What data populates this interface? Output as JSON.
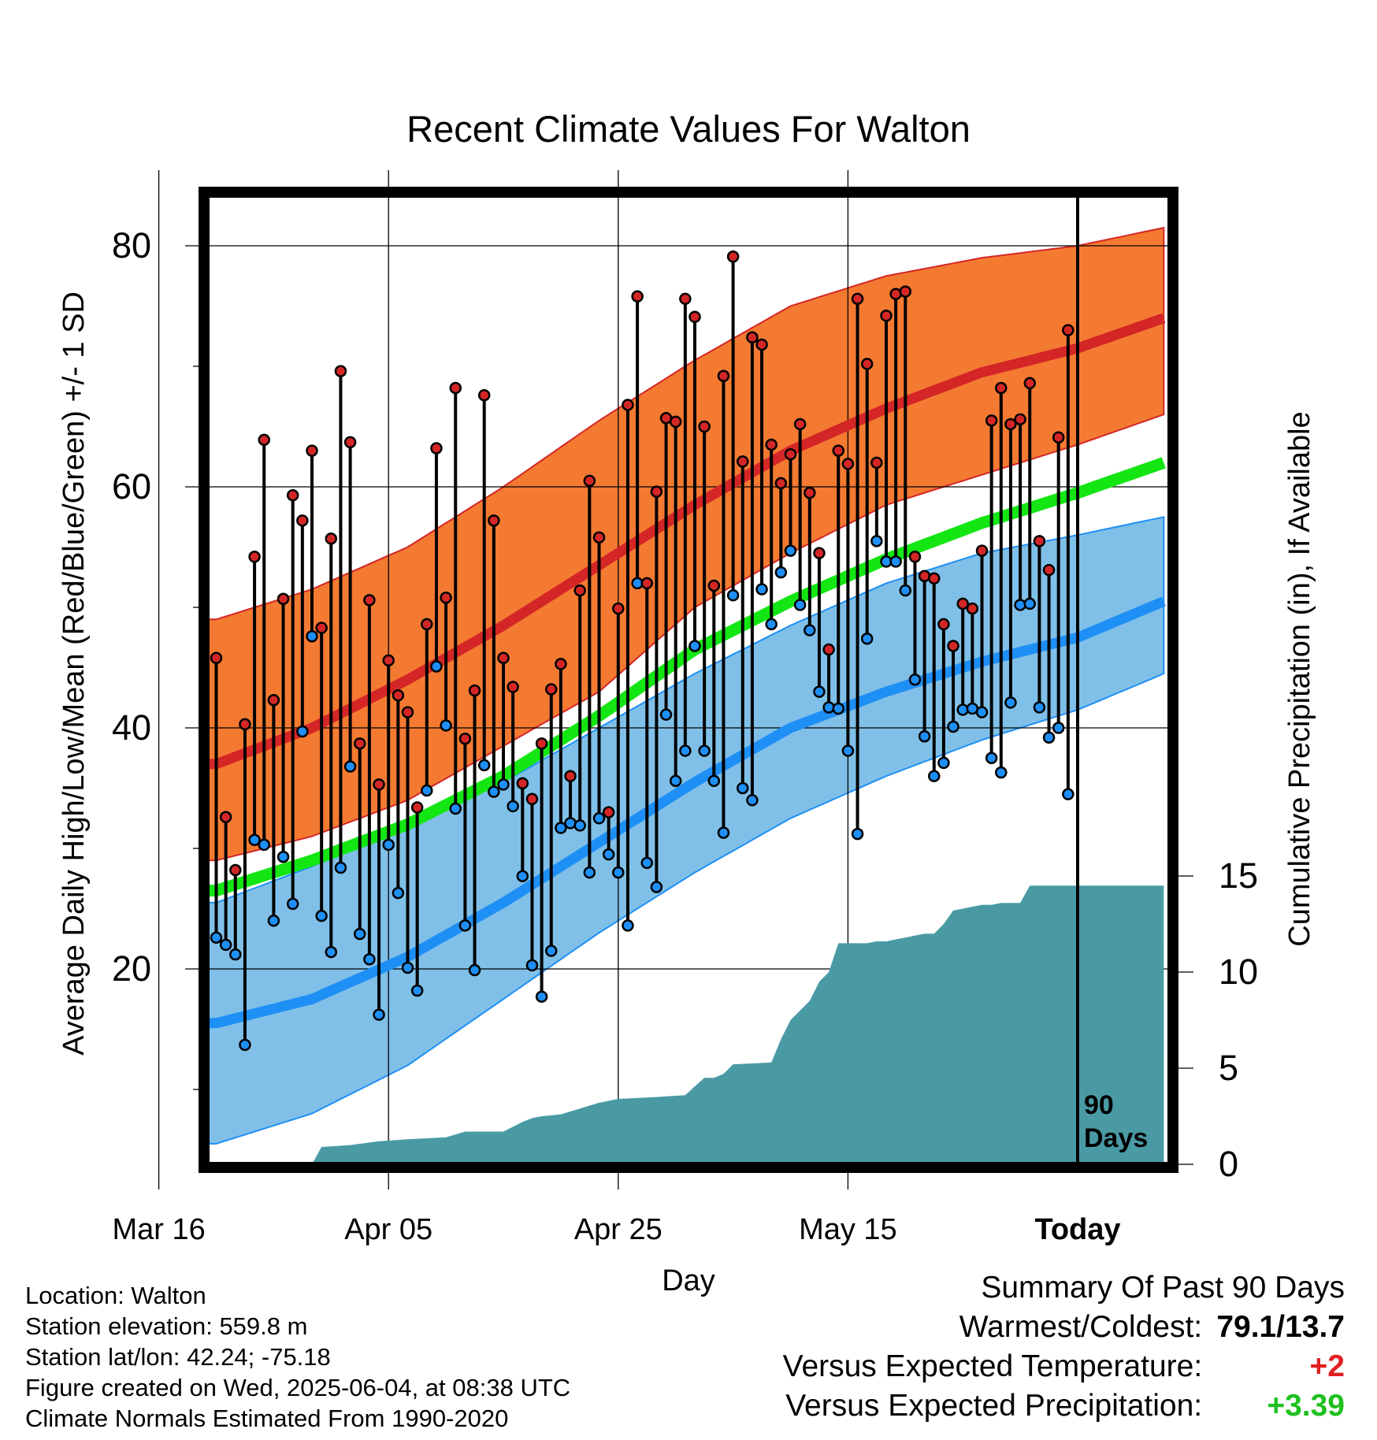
{
  "chart_data": {
    "type": "line",
    "title": "Recent Climate Values For Walton",
    "xlabel": "Day",
    "ylabel": "Average Daily High/Low/Mean (Red/Blue/Green) +/- 1 SD",
    "y2label": "Cumulative Precipitation (in), If Available",
    "x_tick_labels": [
      "Mar 16",
      "Apr 05",
      "Apr 25",
      "May 15",
      "Today"
    ],
    "today_marker_label": "90\nDays",
    "y_ticks": [
      20,
      40,
      60,
      80
    ],
    "y2_ticks": [
      0,
      5,
      10,
      15
    ],
    "ylim": [
      5,
      86
    ],
    "y2lim": [
      0,
      24.7
    ],
    "xlim": [
      -100,
      0
    ],
    "colors": {
      "high_band": "#f47a32",
      "high_normal": "#d42626",
      "low_band": "#80c0e8",
      "low_normal": "#1e8ff5",
      "mean_normal": "#14e614",
      "precip": "#4a9aa4"
    },
    "normals": {
      "days_before_today": [
        -90,
        -80,
        -70,
        -60,
        -50,
        -40,
        -30,
        -20,
        -10,
        0,
        9
      ],
      "high_mean": [
        37.0,
        40.0,
        44.0,
        48.5,
        53.5,
        58.5,
        63.0,
        66.5,
        69.5,
        71.5,
        74.0
      ],
      "high_upper": [
        49.0,
        51.5,
        55.0,
        60.0,
        65.5,
        70.5,
        75.0,
        77.5,
        79.0,
        80.0,
        81.5
      ],
      "high_lower": [
        29.0,
        31.0,
        34.0,
        38.5,
        43.0,
        50.0,
        54.5,
        58.5,
        61.0,
        63.5,
        66.0
      ],
      "mean_normal": [
        26.5,
        29.0,
        32.0,
        36.0,
        41.0,
        46.5,
        50.5,
        54.0,
        57.0,
        59.5,
        62.0
      ],
      "low_mean": [
        15.5,
        17.5,
        21.0,
        25.5,
        30.5,
        35.5,
        40.0,
        43.0,
        45.5,
        47.5,
        50.5
      ],
      "low_upper": [
        25.5,
        28.5,
        32.0,
        35.5,
        40.0,
        44.5,
        48.5,
        52.0,
        54.5,
        56.0,
        57.5
      ],
      "low_lower": [
        5.5,
        8.0,
        12.0,
        17.5,
        23.0,
        28.0,
        32.5,
        36.0,
        39.0,
        41.5,
        44.5
      ]
    },
    "daily_high": [
      45.8,
      32.6,
      28.2,
      40.3,
      54.2,
      63.9,
      42.3,
      50.7,
      59.3,
      57.2,
      63.0,
      48.3,
      55.7,
      69.6,
      63.7,
      38.7,
      50.6,
      35.3,
      45.6,
      42.7,
      41.3,
      33.4,
      48.6,
      63.2,
      50.8,
      68.2,
      39.1,
      43.1,
      67.6,
      57.2,
      45.8,
      43.4,
      35.4,
      34.1,
      38.7,
      43.2,
      45.3,
      36.0,
      51.4,
      60.5,
      55.8,
      33.0,
      49.9,
      66.8,
      75.8,
      52.0,
      59.6,
      65.7,
      65.4,
      75.6,
      74.1,
      65.0,
      51.8,
      69.2,
      79.1,
      62.1,
      72.4,
      71.8,
      63.5,
      60.3,
      62.7,
      65.2,
      59.5,
      54.5,
      46.5,
      63.0,
      61.9,
      75.6,
      70.2,
      62.0,
      74.2,
      76.0,
      76.2,
      54.2,
      52.6,
      52.4,
      48.6,
      46.8,
      50.3,
      49.9,
      54.7,
      65.5,
      68.2,
      65.2,
      65.6,
      68.6,
      55.5,
      53.1,
      64.1,
      73.0
    ],
    "daily_low": [
      22.6,
      22.0,
      21.2,
      13.7,
      30.7,
      30.3,
      24.0,
      29.3,
      25.4,
      39.7,
      47.6,
      24.4,
      21.4,
      28.4,
      36.8,
      22.9,
      20.8,
      16.2,
      30.3,
      26.3,
      20.1,
      18.2,
      34.8,
      45.1,
      40.2,
      33.3,
      23.6,
      19.9,
      36.9,
      34.7,
      35.3,
      33.5,
      27.7,
      20.3,
      17.7,
      21.5,
      31.7,
      32.1,
      31.9,
      28.0,
      32.5,
      29.5,
      28.0,
      23.6,
      52.0,
      28.8,
      26.8,
      41.1,
      35.6,
      38.1,
      46.8,
      38.1,
      35.6,
      31.3,
      51.0,
      35.0,
      34.0,
      51.5,
      48.6,
      52.9,
      54.7,
      50.2,
      48.1,
      43.0,
      41.7,
      41.6,
      38.1,
      31.2,
      47.4,
      55.5,
      53.8,
      53.8,
      51.4,
      44.0,
      39.3,
      36.0,
      37.1,
      40.1,
      41.5,
      41.6,
      41.3,
      37.5,
      36.3,
      42.1,
      50.2,
      50.3,
      41.7,
      39.2,
      40.0,
      34.5
    ],
    "precip_cumulative_days": [
      -90,
      -80,
      -79,
      -76,
      -73,
      -70,
      -66,
      -64,
      -60,
      -58,
      -57,
      -56,
      -54,
      -52,
      -50,
      -48,
      -44,
      -41,
      -39,
      -38,
      -37,
      -36,
      -32,
      -31,
      -30,
      -28,
      -27,
      -26,
      -25,
      -24,
      -22,
      -21,
      -20,
      -18,
      -16,
      -15,
      -14,
      -13,
      -12,
      -11,
      -10,
      -9,
      -8,
      -7,
      -6,
      -5,
      -3,
      -2,
      0,
      9
    ],
    "precip_cumulative": [
      0.0,
      0.0,
      0.9,
      1.0,
      1.2,
      1.3,
      1.4,
      1.7,
      1.7,
      2.2,
      2.4,
      2.5,
      2.6,
      2.9,
      3.2,
      3.4,
      3.5,
      3.6,
      4.5,
      4.5,
      4.7,
      5.2,
      5.3,
      6.5,
      7.5,
      8.5,
      9.5,
      10.0,
      11.5,
      11.5,
      11.5,
      11.6,
      11.6,
      11.8,
      12.0,
      12.0,
      12.5,
      13.2,
      13.3,
      13.4,
      13.5,
      13.5,
      13.6,
      13.6,
      13.6,
      14.5,
      14.5,
      14.5,
      14.5,
      14.5
    ]
  },
  "info": {
    "location": "Location: Walton",
    "elevation": "Station elevation: 559.8 m",
    "latlon": "Station lat/lon: 42.24; -75.18",
    "created": "Figure created on Wed, 2025-06-04, at 08:38 UTC",
    "normals": "Climate Normals Estimated From 1990-2020"
  },
  "summary": {
    "heading": "Summary Of Past 90 Days",
    "warm_cold_label": "Warmest/Coldest:",
    "warm_cold_value": "79.1/13.7",
    "temp_label": "Versus Expected Temperature:",
    "temp_value": "+2",
    "temp_color": "#e02020",
    "precip_label": "Versus Expected Precipitation:",
    "precip_value": "+3.39",
    "precip_color": "#20c020"
  }
}
